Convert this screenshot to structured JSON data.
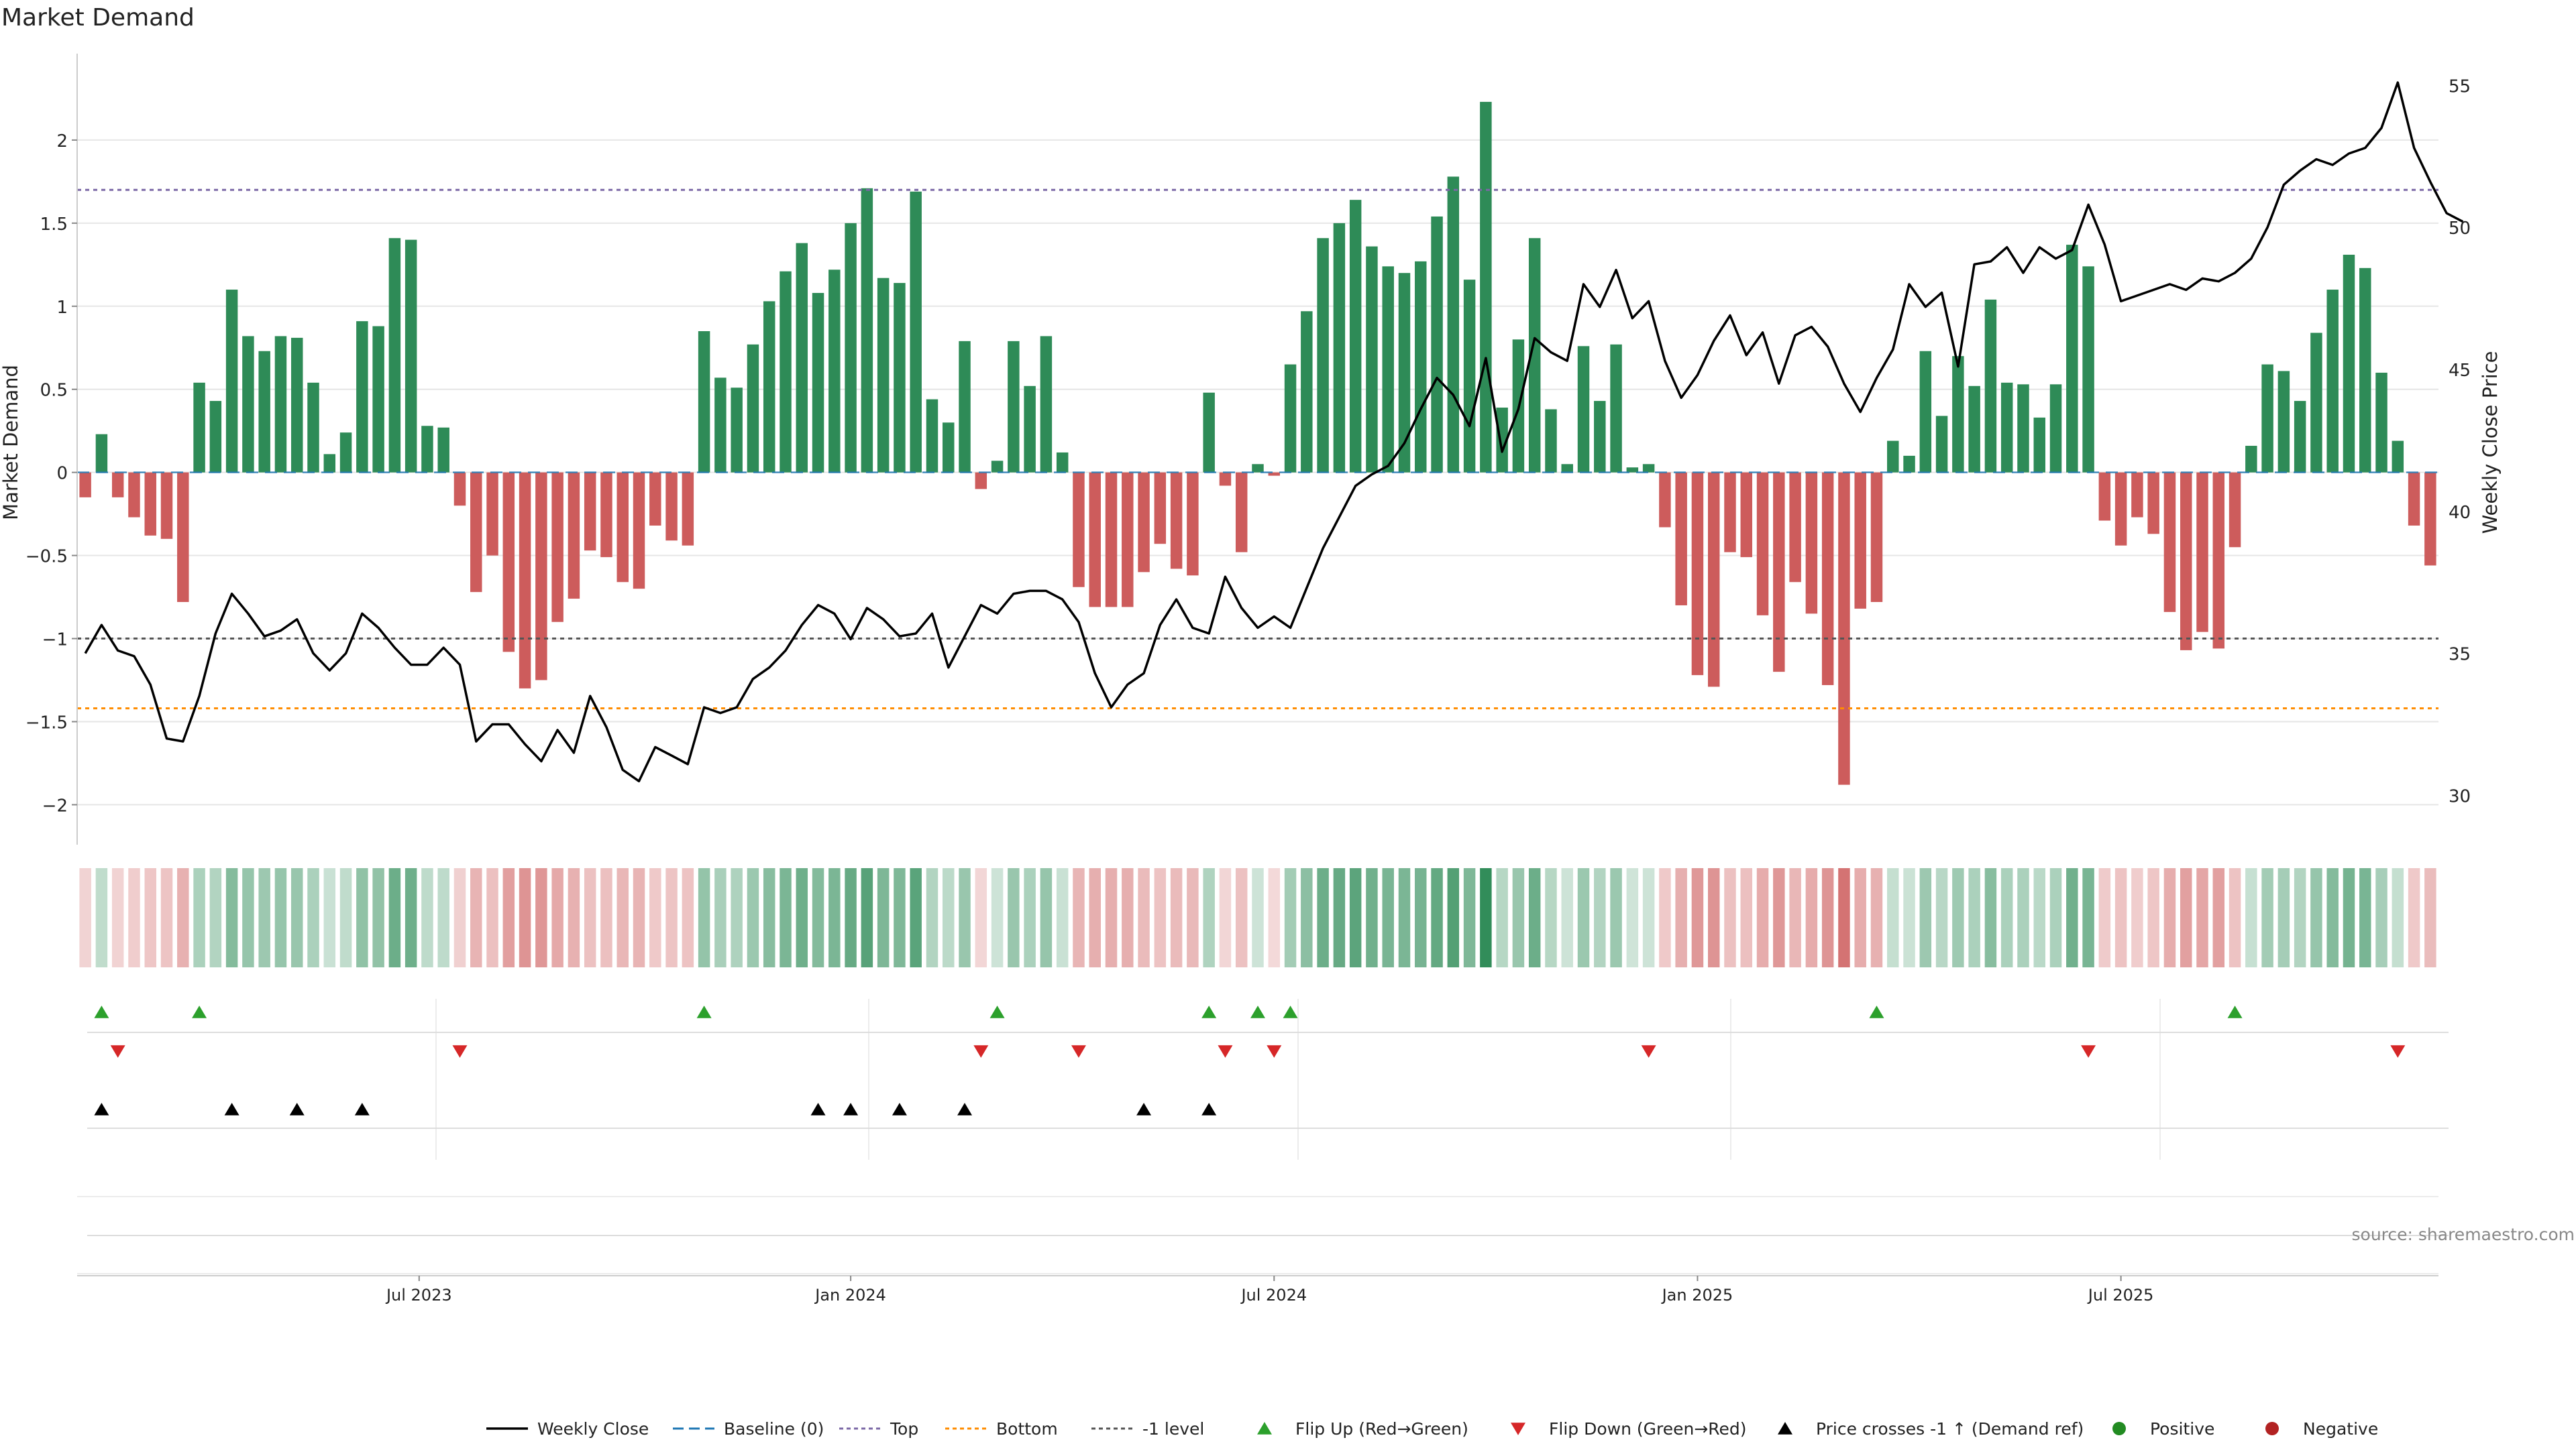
{
  "chart_data": {
    "type": "bar",
    "title": "Market Demand",
    "ylabel_left": "Market Demand",
    "ylabel_right": "Weekly Close Price",
    "ylim_left": [
      -2.2,
      2.5
    ],
    "ylim_right": [
      28.5,
      56
    ],
    "yticks_left": [
      {
        "v": 2,
        "label": "2"
      },
      {
        "v": 1.5,
        "label": "1.5"
      },
      {
        "v": 1,
        "label": "1"
      },
      {
        "v": 0.5,
        "label": "0.5"
      },
      {
        "v": 0,
        "label": "0"
      },
      {
        "v": -0.5,
        "label": "−0.5"
      },
      {
        "v": -1,
        "label": "−1"
      },
      {
        "v": -1.5,
        "label": "−1.5"
      },
      {
        "v": -2,
        "label": "−2"
      }
    ],
    "yticks_right": [
      {
        "v": 55,
        "label": "55"
      },
      {
        "v": 50,
        "label": "50"
      },
      {
        "v": 45,
        "label": "45"
      },
      {
        "v": 40,
        "label": "40"
      },
      {
        "v": 35,
        "label": "35"
      },
      {
        "v": 30,
        "label": "30"
      }
    ],
    "xticks": [
      {
        "week": 21,
        "label": "Jul 2023"
      },
      {
        "week": 47.5,
        "label": "Jan 2024"
      },
      {
        "week": 73.5,
        "label": "Jul 2024"
      },
      {
        "week": 99.5,
        "label": "Jan 2025"
      },
      {
        "week": 125.5,
        "label": "Jul 2025"
      }
    ],
    "reference_lines": {
      "top": 1.7,
      "bottom": -1.42,
      "minus_one": -1,
      "baseline": 0
    },
    "demand": [
      -0.15,
      0.23,
      -0.15,
      -0.27,
      -0.38,
      -0.4,
      -0.78,
      0.54,
      0.43,
      1.1,
      0.82,
      0.73,
      0.82,
      0.81,
      0.54,
      0.11,
      0.24,
      0.91,
      0.88,
      1.41,
      1.4,
      0.28,
      0.27,
      -0.2,
      -0.72,
      -0.5,
      -1.08,
      -1.3,
      -1.25,
      -0.9,
      -0.76,
      -0.47,
      -0.51,
      -0.66,
      -0.7,
      -0.32,
      -0.41,
      -0.44,
      0.85,
      0.57,
      0.51,
      0.77,
      1.03,
      1.21,
      1.38,
      1.08,
      1.22,
      1.5,
      1.71,
      1.17,
      1.14,
      1.69,
      0.44,
      0.3,
      0.79,
      -0.1,
      0.07,
      0.79,
      0.52,
      0.82,
      0.12,
      -0.69,
      -0.81,
      -0.81,
      -0.81,
      -0.6,
      -0.43,
      -0.58,
      -0.62,
      0.48,
      -0.08,
      -0.48,
      0.05,
      -0.02,
      0.65,
      0.97,
      1.41,
      1.5,
      1.64,
      1.36,
      1.24,
      1.2,
      1.27,
      1.54,
      1.78,
      1.16,
      2.23,
      0.39,
      0.8,
      1.41,
      0.38,
      0.05,
      0.76,
      0.43,
      0.77,
      0.03,
      0.05,
      -0.33,
      -0.8,
      -1.22,
      -1.29,
      -0.48,
      -0.51,
      -0.86,
      -1.2,
      -0.66,
      -0.85,
      -1.28,
      -1.88,
      -0.82,
      -0.78,
      0.19,
      0.1,
      0.73,
      0.34,
      0.7,
      0.52,
      1.04,
      0.54,
      0.53,
      0.33,
      0.53,
      1.37,
      1.24,
      -0.29,
      -0.44,
      -0.27,
      -0.37,
      -0.84,
      -1.07,
      -0.96,
      -1.06,
      -0.45,
      0.16,
      0.65,
      0.61,
      0.43,
      0.84,
      1.1,
      1.31,
      1.23,
      0.6,
      0.19,
      -0.32,
      -0.56
    ],
    "price": [
      35,
      36,
      35.1,
      34.9,
      33.9,
      32,
      31.9,
      33.5,
      35.7,
      37.1,
      36.4,
      35.6,
      35.8,
      36.2,
      35,
      34.4,
      35,
      36.4,
      35.9,
      35.2,
      34.6,
      34.6,
      35.2,
      34.6,
      31.9,
      32.5,
      32.5,
      31.8,
      31.2,
      32.3,
      31.5,
      33.5,
      32.4,
      30.9,
      30.5,
      31.7,
      31.4,
      31.1,
      33.1,
      32.9,
      33.1,
      34.1,
      34.5,
      35.1,
      36,
      36.7,
      36.4,
      35.5,
      36.6,
      36.2,
      35.6,
      35.7,
      36.4,
      34.5,
      35.6,
      36.7,
      36.4,
      37.1,
      37.2,
      37.2,
      36.9,
      36.1,
      34.3,
      33.1,
      33.9,
      34.3,
      36,
      36.9,
      35.9,
      35.7,
      37.7,
      36.6,
      35.9,
      36.3,
      35.9,
      37.3,
      38.7,
      39.8,
      40.9,
      41.3,
      41.6,
      42.4,
      43.6,
      44.7,
      44.1,
      43,
      45.4,
      42.1,
      43.6,
      46.1,
      45.6,
      45.3,
      48,
      47.2,
      48.5,
      46.8,
      47.4,
      45.3,
      44,
      44.8,
      46,
      46.9,
      45.5,
      46.3,
      44.5,
      46.2,
      46.5,
      45.8,
      44.5,
      43.5,
      44.7,
      45.7,
      48,
      47.2,
      47.7,
      45.1,
      48.7,
      48.8,
      49.3,
      48.4,
      49.3,
      48.9,
      49.2,
      50.8,
      49.4,
      47.4,
      47.6,
      47.8,
      48,
      47.8,
      48.2,
      48.1,
      48.4,
      48.9,
      50,
      51.5,
      52,
      52.4,
      52.2,
      52.6,
      52.8,
      53.5,
      55.1,
      52.8,
      51.6,
      50.5,
      50.2
    ],
    "flip_up": [
      1,
      7,
      38,
      56,
      69,
      72,
      74,
      110,
      132
    ],
    "flip_down": [
      2,
      23,
      55,
      61,
      70,
      73,
      96,
      123,
      142
    ],
    "price_cross": [
      1,
      9,
      13,
      17,
      45,
      47,
      50,
      54,
      65,
      69
    ],
    "source": "source: sharemaestro.com"
  },
  "legend": [
    {
      "key": "weekly_close",
      "label": "Weekly Close"
    },
    {
      "key": "baseline",
      "label": "Baseline (0)"
    },
    {
      "key": "top",
      "label": "Top"
    },
    {
      "key": "bottom",
      "label": "Bottom"
    },
    {
      "key": "minus1",
      "label": "-1 level"
    },
    {
      "key": "flip_up",
      "label": "Flip Up (Red→Green)"
    },
    {
      "key": "flip_down",
      "label": "Flip Down (Green→Red)"
    },
    {
      "key": "price_cross",
      "label": "Price crosses -1 ↑ (Demand ref)"
    },
    {
      "key": "positive",
      "label": "Positive"
    },
    {
      "key": "negative",
      "label": "Negative"
    }
  ],
  "colors": {
    "positive": "#2e8b57",
    "negative": "#cd5c5c",
    "price_line": "#000000",
    "baseline": "#1f77b4",
    "top": "#7b68a6",
    "bottom": "#ff8c00",
    "minus1": "#555555",
    "flip_up": "#2ca02c",
    "flip_down": "#d62728",
    "cross": "#000000",
    "grid": "#e6e6e6",
    "axis": "#cccccc"
  }
}
